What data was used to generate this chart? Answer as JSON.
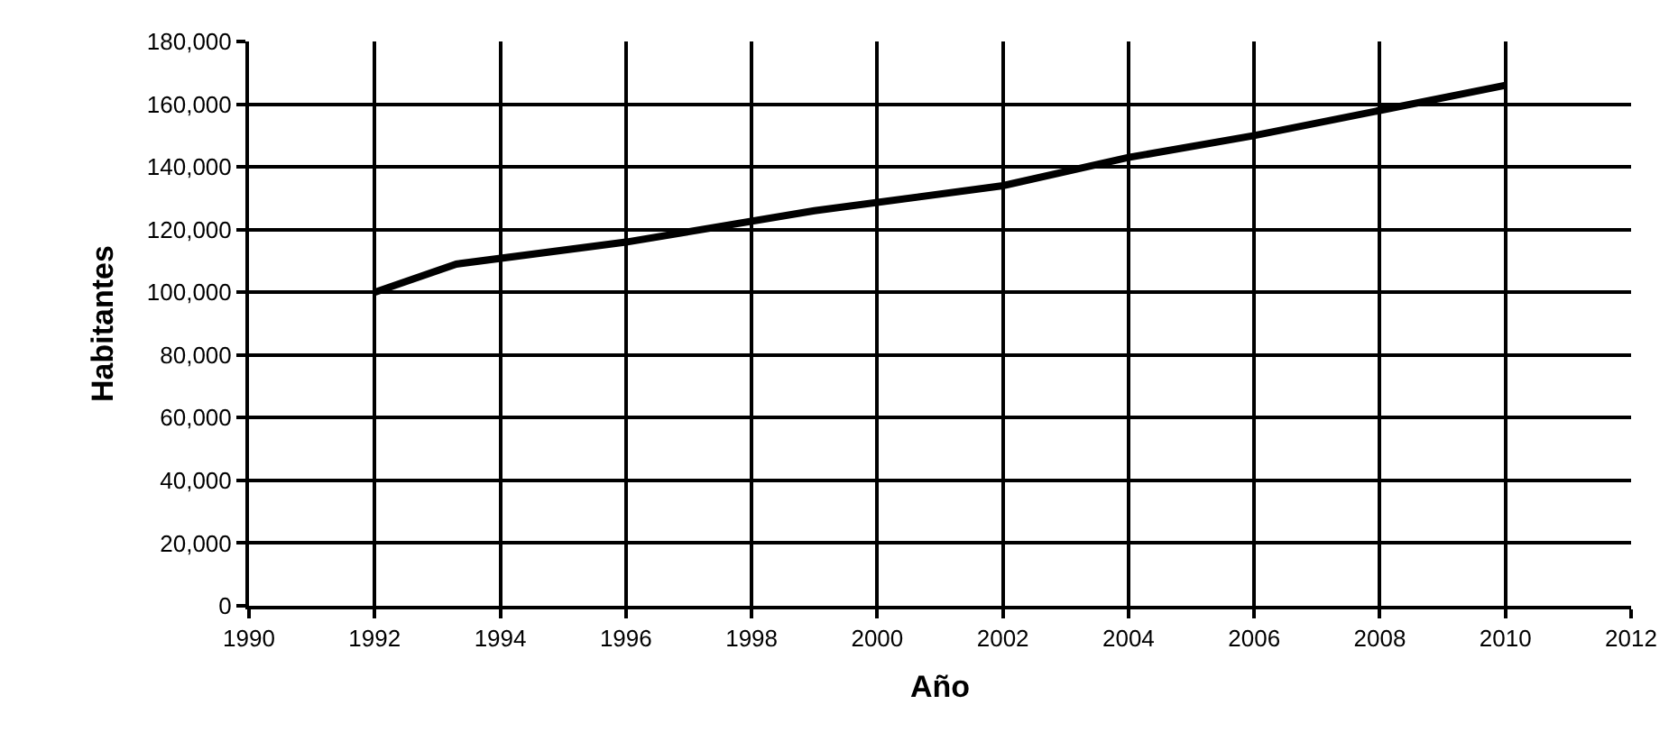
{
  "chart_data": {
    "type": "line",
    "xlabel": "Año",
    "ylabel": "Habitantes",
    "x": [
      1992,
      1993.3,
      1996,
      1999,
      2002,
      2004,
      2006,
      2008,
      2010
    ],
    "series": [
      {
        "color": "#000000",
        "values": [
          100000,
          109000,
          116000,
          126000,
          134000,
          143000,
          150000,
          158000,
          166000
        ]
      }
    ],
    "xlim": [
      1990,
      2012
    ],
    "xticks": [
      1990,
      1992,
      1994,
      1996,
      1998,
      2000,
      2002,
      2004,
      2006,
      2008,
      2010,
      2012
    ],
    "ylim": [
      0,
      180000
    ],
    "yticks": [
      0,
      {
        "value": 20000,
        "label": "20,000"
      },
      {
        "value": 40000,
        "label": "40,000"
      },
      {
        "value": 60000,
        "label": "60,000"
      },
      {
        "value": 80000,
        "label": "80,000"
      },
      {
        "value": 100000,
        "label": "100,000"
      },
      {
        "value": 120000,
        "label": "120,000"
      },
      {
        "value": 140000,
        "label": "140,000"
      },
      {
        "value": 160000,
        "label": "160,000"
      },
      {
        "value": 180000,
        "label": "180,000"
      }
    ],
    "grid": true
  }
}
